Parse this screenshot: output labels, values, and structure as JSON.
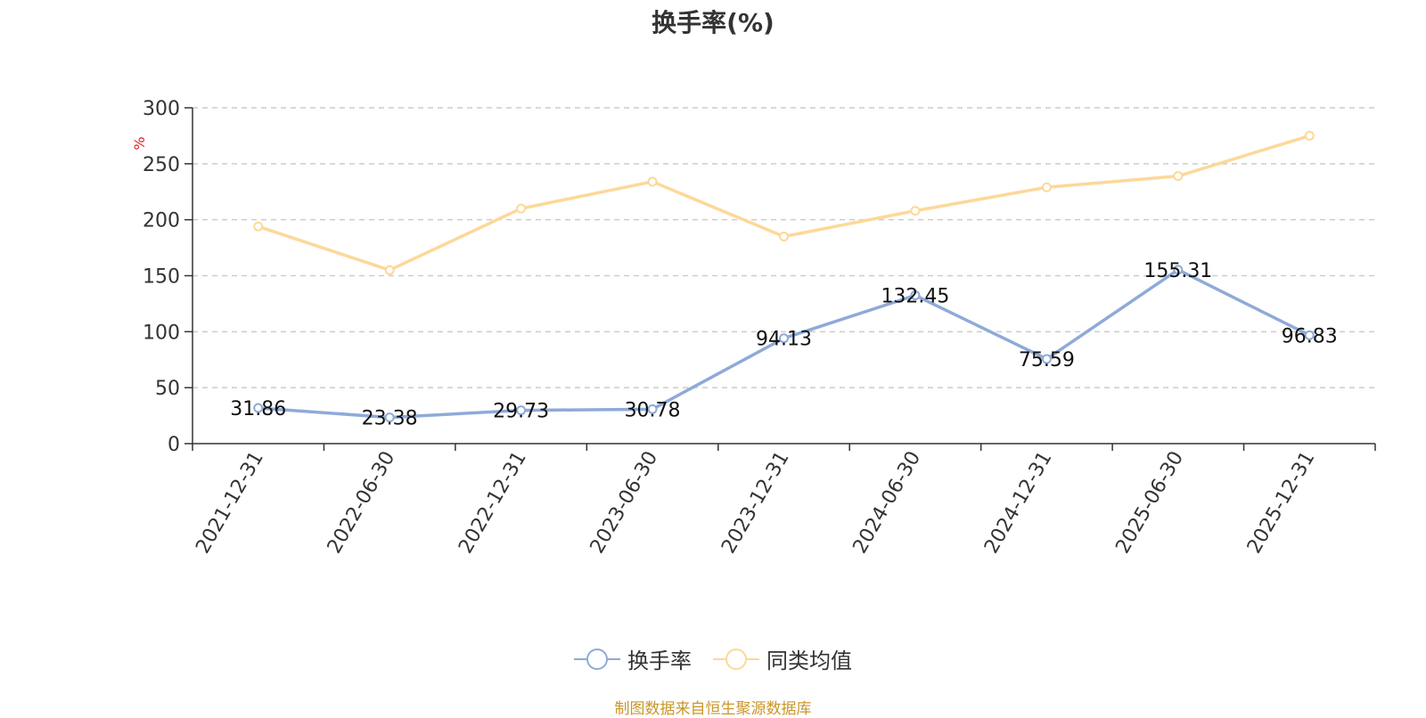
{
  "chart_data": {
    "type": "line",
    "title": "换手率(%)",
    "ylabel": "%",
    "ylim": [
      0,
      300
    ],
    "yticks": [
      0,
      50,
      100,
      150,
      200,
      250,
      300
    ],
    "categories": [
      "2021-12-31",
      "2022-06-30",
      "2022-12-31",
      "2023-06-30",
      "2023-12-31",
      "2024-06-30",
      "2024-12-31",
      "2025-06-30",
      "2025-12-31"
    ],
    "grid": true,
    "legend_position": "bottom",
    "series": [
      {
        "name": "换手率",
        "color": "#8eaad8",
        "show_labels": true,
        "values": [
          31.86,
          23.38,
          29.73,
          30.78,
          94.13,
          132.45,
          75.59,
          155.31,
          96.83
        ]
      },
      {
        "name": "同类均值",
        "color": "#fdd898",
        "show_labels": false,
        "values": [
          194,
          155,
          210,
          234,
          185,
          208,
          229,
          239,
          275
        ]
      }
    ]
  },
  "footer": {
    "source": "制图数据来自恒生聚源数据库"
  }
}
